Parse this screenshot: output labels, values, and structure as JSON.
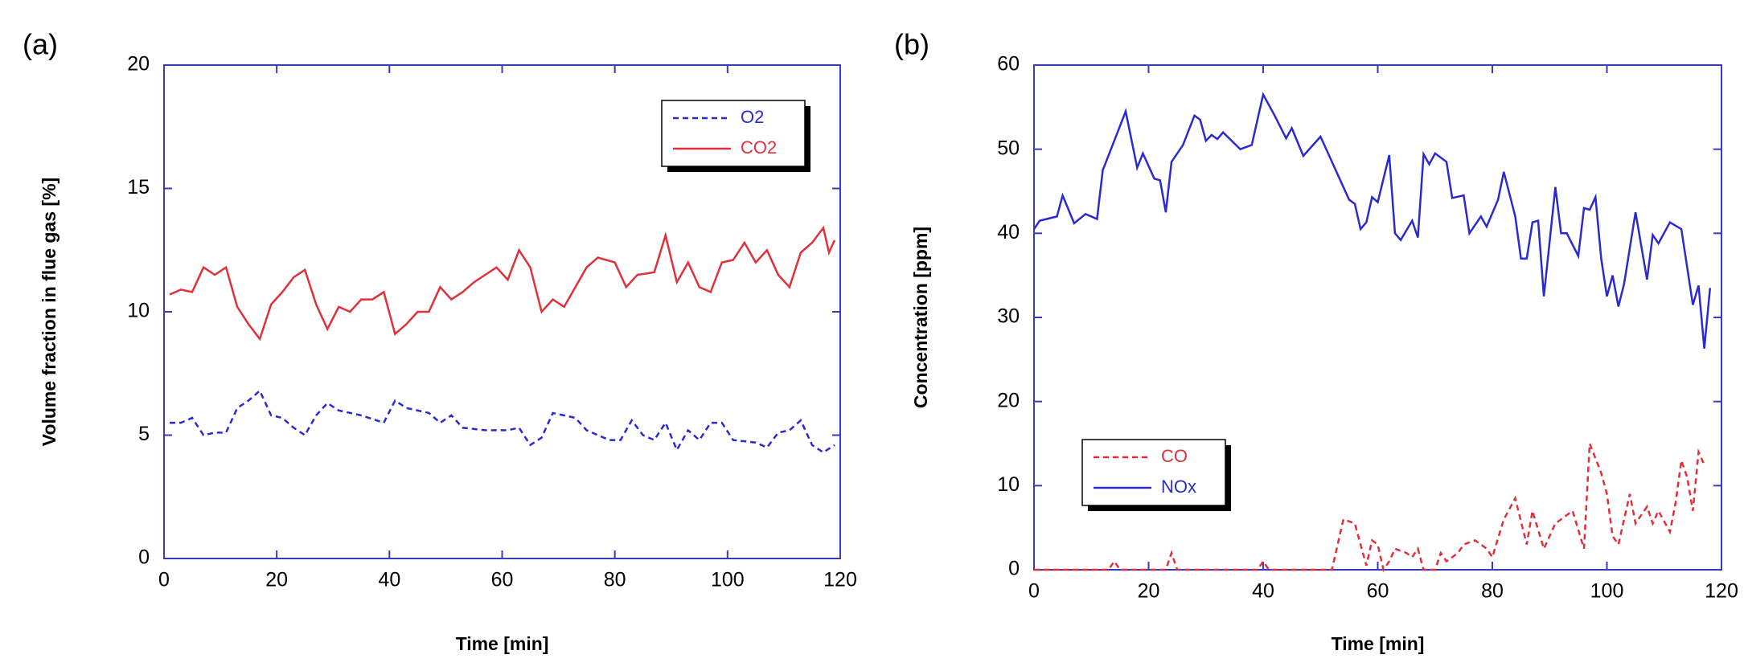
{
  "chart_data": [
    {
      "type": "line",
      "panel_label": "(a)",
      "xlabel": "Time [min]",
      "ylabel": "Volume fraction in flue gas [%]",
      "xlim": [
        0,
        120
      ],
      "xticks": [
        0,
        20,
        40,
        60,
        80,
        100,
        120
      ],
      "ylim": [
        0,
        20
      ],
      "yticks": [
        0,
        5,
        10,
        15,
        20
      ],
      "legend": "upper right",
      "series": [
        {
          "name": "O2",
          "color": "#2a2ad0",
          "dashed": true,
          "x": [
            1,
            3,
            5,
            7,
            9,
            11,
            13,
            15,
            17,
            19,
            21,
            23,
            25,
            27,
            29,
            31,
            35,
            39,
            41,
            43,
            47,
            49,
            51,
            53,
            57,
            61,
            63,
            65,
            67,
            69,
            73,
            75,
            79,
            81,
            83,
            85,
            87,
            89,
            91,
            93,
            95,
            97,
            99,
            101,
            105,
            107,
            109,
            111,
            113,
            115,
            117,
            119
          ],
          "values": [
            5.5,
            5.5,
            5.7,
            5.0,
            5.1,
            5.1,
            6.1,
            6.4,
            6.8,
            5.8,
            5.7,
            5.3,
            5.0,
            5.8,
            6.3,
            6.0,
            5.8,
            5.5,
            6.4,
            6.1,
            5.9,
            5.5,
            5.8,
            5.3,
            5.2,
            5.2,
            5.3,
            4.6,
            4.9,
            5.9,
            5.7,
            5.2,
            4.8,
            4.8,
            5.6,
            5.0,
            4.8,
            5.5,
            4.4,
            5.2,
            4.8,
            5.5,
            5.5,
            4.8,
            4.7,
            4.5,
            5.1,
            5.2,
            5.6,
            4.6,
            4.3,
            4.6
          ]
        },
        {
          "name": "CO2",
          "color": "#e0303a",
          "dashed": false,
          "x": [
            1,
            3,
            5,
            7,
            9,
            11,
            13,
            15,
            17,
            19,
            21,
            23,
            25,
            27,
            29,
            31,
            33,
            35,
            37,
            39,
            41,
            43,
            45,
            47,
            49,
            51,
            53,
            55,
            57,
            59,
            61,
            63,
            65,
            67,
            69,
            71,
            73,
            75,
            77,
            80,
            82,
            84,
            87,
            89,
            91,
            93,
            95,
            97,
            99,
            101,
            103,
            105,
            107,
            109,
            111,
            113,
            115,
            117,
            118,
            119
          ],
          "values": [
            10.7,
            10.9,
            10.8,
            11.8,
            11.5,
            11.8,
            10.2,
            9.5,
            8.9,
            10.3,
            10.8,
            11.4,
            11.7,
            10.3,
            9.3,
            10.2,
            10.0,
            10.5,
            10.5,
            10.8,
            9.1,
            9.5,
            10.0,
            10.0,
            11.0,
            10.5,
            10.8,
            11.2,
            11.5,
            11.8,
            11.3,
            12.5,
            11.8,
            10.0,
            10.5,
            10.2,
            11.0,
            11.8,
            12.2,
            12.0,
            11.0,
            11.5,
            11.6,
            13.1,
            11.2,
            12.0,
            11.0,
            10.8,
            12.0,
            12.1,
            12.8,
            12.0,
            12.5,
            11.5,
            11.0,
            12.4,
            12.8,
            13.4,
            12.4,
            12.9
          ]
        }
      ]
    },
    {
      "type": "line",
      "panel_label": "(b)",
      "xlabel": "Time [min]",
      "ylabel": "Concentration [ppm]",
      "xlim": [
        0,
        120
      ],
      "xticks": [
        0,
        20,
        40,
        60,
        80,
        100,
        120
      ],
      "ylim": [
        0,
        60
      ],
      "yticks": [
        0,
        10,
        20,
        30,
        40,
        50,
        60
      ],
      "legend": "lower left",
      "series": [
        {
          "name": "CO",
          "color": "#e0303a",
          "dashed": true,
          "x": [
            0,
            13,
            14,
            15,
            23,
            24,
            25,
            39,
            40,
            41,
            52,
            54,
            56,
            57,
            58,
            59,
            60,
            61,
            62,
            63,
            65,
            66,
            67,
            68,
            70,
            71,
            72,
            74,
            75,
            77,
            79,
            80,
            82,
            84,
            86,
            87,
            89,
            91,
            93,
            94,
            96,
            97,
            99,
            100,
            101,
            102,
            104,
            105,
            107,
            108,
            109,
            111,
            112,
            113,
            114,
            115,
            116,
            117
          ],
          "values": [
            0,
            0,
            1,
            0,
            0,
            2,
            0,
            0,
            1,
            0,
            0,
            6,
            5.5,
            3,
            0.5,
            3.5,
            3,
            0,
            1,
            2.5,
            2,
            1.5,
            2.5,
            0,
            0,
            2,
            1,
            2,
            3,
            3.5,
            2.5,
            1.5,
            6,
            8.5,
            3,
            7,
            2.5,
            5.5,
            6.5,
            7,
            2.5,
            15,
            11.5,
            9,
            4,
            3,
            9,
            5.5,
            7.5,
            5.5,
            7,
            4.5,
            8,
            13,
            11,
            7,
            14,
            12.5
          ]
        },
        {
          "name": "NOx",
          "color": "#2a2ad0",
          "dashed": false,
          "x": [
            0,
            1,
            4,
            5,
            7,
            9,
            11,
            12,
            14,
            16,
            18,
            19,
            21,
            22,
            23,
            24,
            26,
            28,
            29,
            30,
            31,
            32,
            33,
            36,
            38,
            40,
            42,
            44,
            45,
            47,
            50,
            55,
            56,
            57,
            58,
            59,
            60,
            62,
            63,
            64,
            66,
            67,
            68,
            69,
            70,
            72,
            73,
            75,
            76,
            78,
            79,
            81,
            82,
            84,
            85,
            86,
            87,
            88,
            89,
            91,
            92,
            93,
            95,
            96,
            97,
            98,
            99,
            100,
            101,
            102,
            103,
            105,
            107,
            108,
            109,
            111,
            113,
            115,
            116,
            117,
            118
          ],
          "values": [
            40.5,
            41.5,
            42,
            44.5,
            41.2,
            42.3,
            41.7,
            47.5,
            51,
            54.5,
            47.8,
            49.5,
            46.5,
            46.3,
            42.5,
            48.5,
            50.5,
            54,
            53.5,
            51,
            51.7,
            51.2,
            52,
            50,
            50.5,
            56.5,
            54,
            51.3,
            52.5,
            49.2,
            51.5,
            44,
            43.5,
            40.5,
            41.3,
            44.3,
            43.7,
            49.3,
            40,
            39.2,
            41.5,
            39.5,
            49.4,
            48.2,
            49.5,
            48.5,
            44.2,
            44.5,
            40,
            42,
            40.8,
            44,
            47.3,
            42,
            37,
            37,
            41.3,
            41.5,
            32.5,
            45.5,
            40,
            40,
            37.3,
            43,
            42.8,
            44.3,
            37,
            32.5,
            35,
            31.3,
            34,
            42.5,
            34.5,
            39.8,
            38.8,
            41.3,
            40.5,
            31.5,
            33.8,
            26.3,
            33.5
          ]
        }
      ]
    }
  ]
}
